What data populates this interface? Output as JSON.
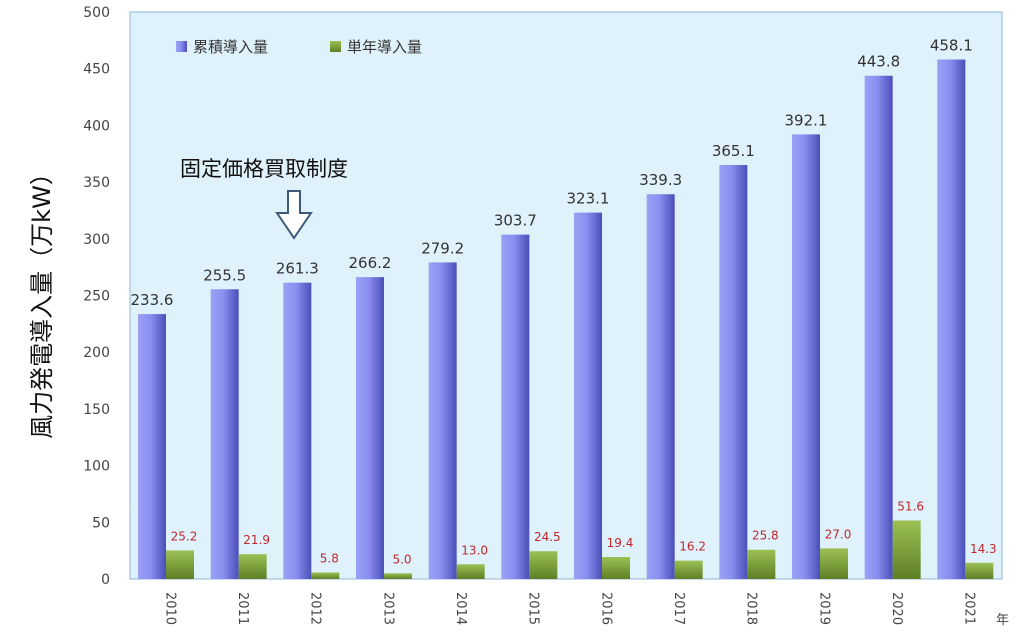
{
  "chart_data": {
    "type": "bar",
    "ylabel": "風力発電導入量（万kW）",
    "xunit": "年",
    "ylim": [
      0,
      500
    ],
    "yticks": [
      0,
      50,
      100,
      150,
      200,
      250,
      300,
      350,
      400,
      450,
      500
    ],
    "grid": false,
    "legend_position": "top-left",
    "categories": [
      "2010",
      "2011",
      "2012",
      "2013",
      "2014",
      "2015",
      "2016",
      "2017",
      "2018",
      "2019",
      "2020",
      "2021"
    ],
    "series": [
      {
        "name": "累積導入量",
        "color": "#8b8ff0",
        "label_color": "#333333",
        "values": [
          233.6,
          255.5,
          261.3,
          266.2,
          279.2,
          303.7,
          323.1,
          339.3,
          365.1,
          392.1,
          443.8,
          458.1
        ],
        "labels": [
          "233.6",
          "255.5",
          "261.3",
          "266.2",
          "279.2",
          "303.7",
          "323.1",
          "339.3",
          "365.1",
          "392.1",
          "443.8",
          "458.1"
        ]
      },
      {
        "name": "単年導入量",
        "color": "#7fa23a",
        "label_color": "#c0282d",
        "values": [
          25.2,
          21.9,
          5.8,
          5.0,
          13.0,
          24.5,
          19.4,
          16.2,
          25.8,
          27.0,
          51.6,
          14.3
        ],
        "labels": [
          "25.2",
          "21.9",
          "5.8",
          "5.0",
          "13.0",
          "24.5",
          "19.4",
          "16.2",
          "25.8",
          "27.0",
          "51.6",
          "14.3"
        ]
      }
    ],
    "annotations": [
      {
        "text": "固定価格買取制度",
        "category": "2012",
        "marker": "down-arrow"
      }
    ]
  },
  "colors": {
    "plot_background": "#dff1fb",
    "axis": "#888888"
  }
}
